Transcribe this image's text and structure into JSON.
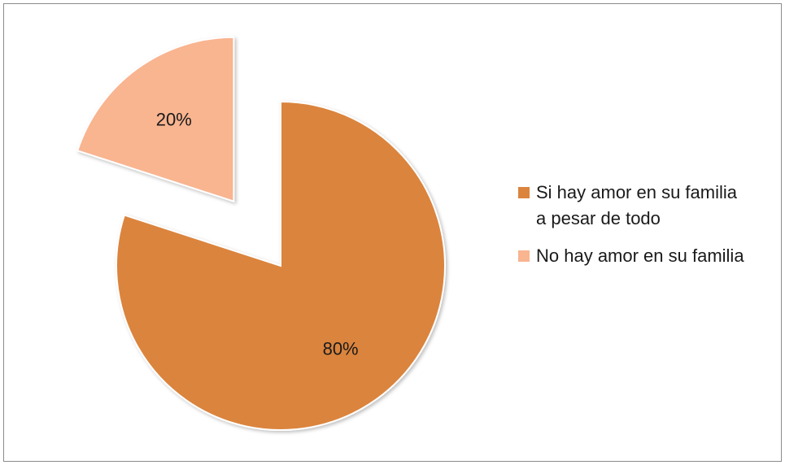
{
  "chart_data": {
    "type": "pie",
    "title": "",
    "slices": [
      {
        "label": "Si hay amor en su familia\na pesar de todo",
        "value": 80,
        "value_label": "80%",
        "color": "#DB843D",
        "exploded": false
      },
      {
        "label": "No hay amor en su familia",
        "value": 20,
        "value_label": "20%",
        "color": "#F9B490",
        "exploded": true
      }
    ],
    "legend_position": "right"
  }
}
